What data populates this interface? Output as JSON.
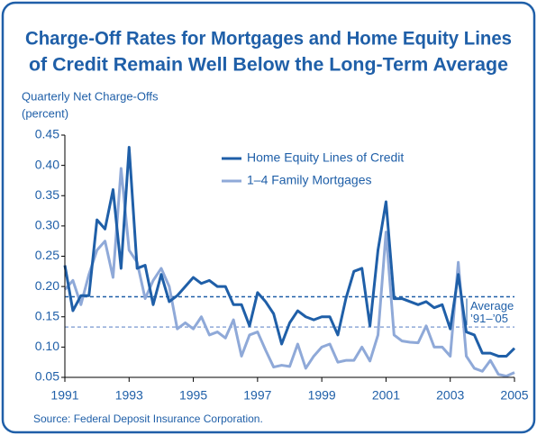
{
  "chart_data": {
    "type": "line",
    "title": [
      "Charge-Off Rates for Mortgages and Home Equity Lines",
      "of Credit Remain Well Below the Long-Term Average"
    ],
    "y_label": [
      "Quarterly Net Charge-Offs",
      "(percent)"
    ],
    "source": "Source: Federal Deposit Insurance Corporation.",
    "x": [
      1991,
      1991.25,
      1991.5,
      1991.75,
      1992,
      1992.25,
      1992.5,
      1992.75,
      1993,
      1993.25,
      1993.5,
      1993.75,
      1994,
      1994.25,
      1994.5,
      1994.75,
      1995,
      1995.25,
      1995.5,
      1995.75,
      1996,
      1996.25,
      1996.5,
      1996.75,
      1997,
      1997.25,
      1997.5,
      1997.75,
      1998,
      1998.25,
      1998.5,
      1998.75,
      1999,
      1999.25,
      1999.5,
      1999.75,
      2000,
      2000.25,
      2000.5,
      2000.75,
      2001,
      2001.25,
      2001.5,
      2001.75,
      2002,
      2002.25,
      2002.5,
      2002.75,
      2003,
      2003.25,
      2003.5,
      2003.75,
      2004,
      2004.25,
      2004.5,
      2004.75,
      2005
    ],
    "series": [
      {
        "name": "Home Equity Lines of Credit",
        "color": "#1f5fa8",
        "values": [
          0.235,
          0.16,
          0.185,
          0.185,
          0.31,
          0.295,
          0.36,
          0.23,
          0.43,
          0.23,
          0.235,
          0.17,
          0.22,
          0.175,
          0.185,
          0.2,
          0.215,
          0.205,
          0.21,
          0.2,
          0.2,
          0.17,
          0.17,
          0.135,
          0.19,
          0.175,
          0.155,
          0.105,
          0.14,
          0.16,
          0.15,
          0.145,
          0.15,
          0.15,
          0.12,
          0.18,
          0.225,
          0.23,
          0.135,
          0.26,
          0.34,
          0.18,
          0.18,
          0.175,
          0.17,
          0.175,
          0.165,
          0.17,
          0.13,
          0.22,
          0.125,
          0.12,
          0.09,
          0.09,
          0.085,
          0.085,
          0.098
        ]
      },
      {
        "name": "1–4 Family Mortgages",
        "color": "#8fa9d8",
        "values": [
          0.195,
          0.21,
          0.17,
          0.22,
          0.26,
          0.275,
          0.215,
          0.395,
          0.26,
          0.24,
          0.18,
          0.21,
          0.23,
          0.2,
          0.13,
          0.14,
          0.13,
          0.15,
          0.12,
          0.125,
          0.115,
          0.145,
          0.085,
          0.12,
          0.125,
          0.095,
          0.067,
          0.07,
          0.068,
          0.105,
          0.065,
          0.085,
          0.1,
          0.105,
          0.075,
          0.078,
          0.078,
          0.1,
          0.077,
          0.12,
          0.29,
          0.12,
          0.11,
          0.108,
          0.107,
          0.135,
          0.1,
          0.1,
          0.085,
          0.24,
          0.085,
          0.065,
          0.06,
          0.078,
          0.055,
          0.052,
          0.058
        ]
      }
    ],
    "reference_lines": [
      {
        "value": 0.183,
        "color": "#1f5fa8"
      },
      {
        "value": 0.133,
        "color": "#8fa9d8"
      }
    ],
    "annotation": [
      "Average",
      "’91–’05"
    ],
    "xlim": [
      1991,
      2005
    ],
    "xticks": [
      1991,
      1993,
      1995,
      1997,
      1999,
      2001,
      2003,
      2005
    ],
    "ylim": [
      0.05,
      0.45
    ],
    "yticks": [
      0.05,
      {
        "value": 0.1,
        "label": "0.10"
      },
      0.15,
      {
        "value": 0.2,
        "label": "0.20"
      },
      0.25,
      {
        "value": 0.3,
        "label": "0.30"
      },
      0.35,
      {
        "value": 0.4,
        "label": "0.40"
      },
      0.45
    ],
    "grid": false
  }
}
